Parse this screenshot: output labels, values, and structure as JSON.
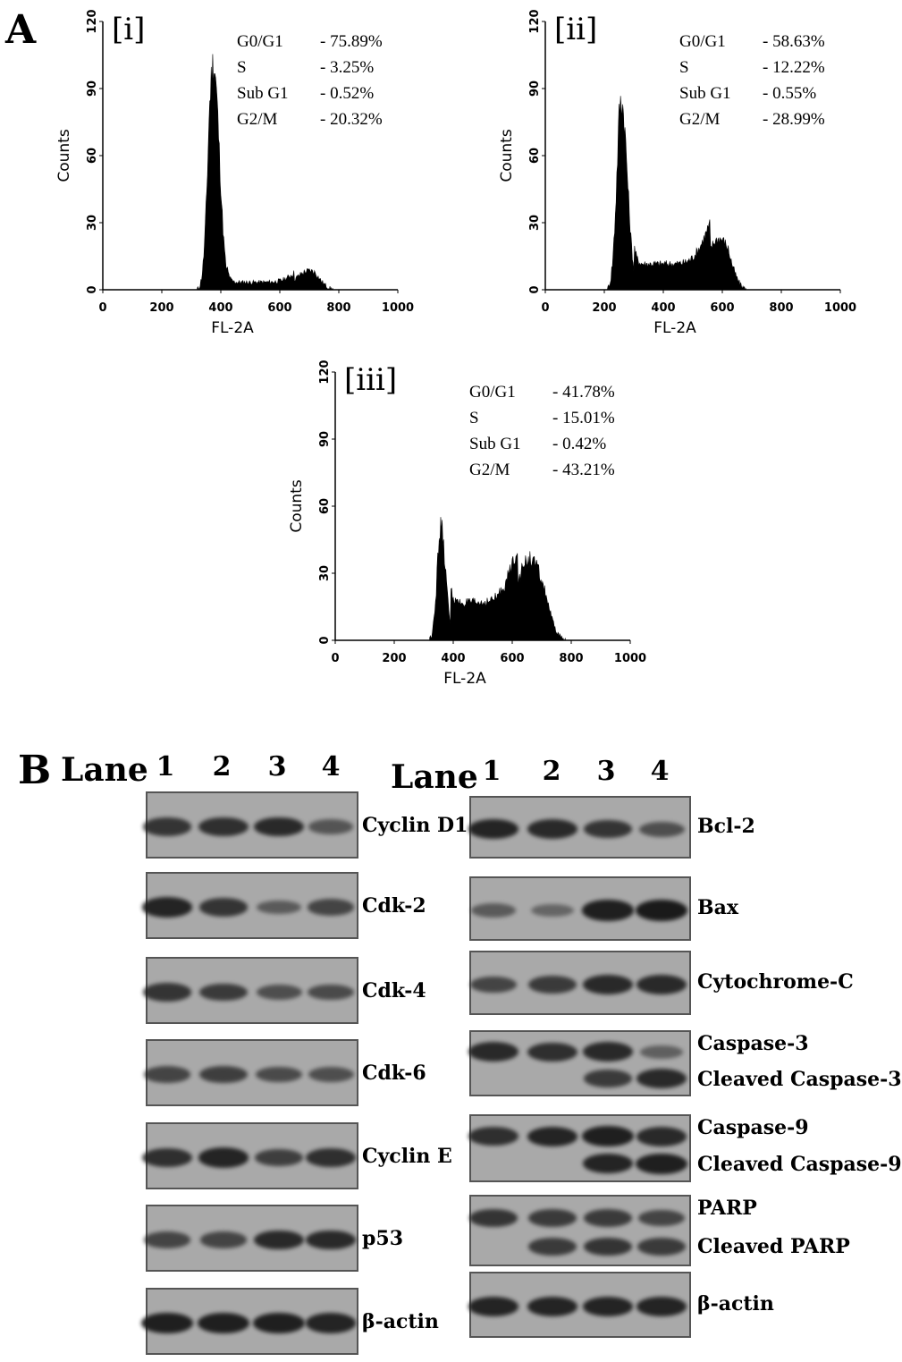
{
  "panel_a_label": "A",
  "panel_b_label": "B",
  "chart_data": [
    {
      "type": "area",
      "panel": "[i]",
      "xlabel": "FL-2A",
      "ylabel": "Counts",
      "xlim": [
        0,
        1000
      ],
      "ylim": [
        0,
        120
      ],
      "xticks": [
        "0",
        "200",
        "400",
        "600",
        "800",
        "1000"
      ],
      "yticks": [
        "0",
        "30",
        "60",
        "90",
        "120"
      ],
      "stats": [
        {
          "phase": "G0/G1",
          "value": "- 75.89%"
        },
        {
          "phase": "S",
          "value": "- 3.25%"
        },
        {
          "phase": "Sub G1",
          "value": "- 0.52%"
        },
        {
          "phase": "G2/M",
          "value": "- 20.32%"
        }
      ],
      "peaks": [
        {
          "center": 375,
          "height": 98,
          "width": 20
        },
        {
          "center": 700,
          "height": 8,
          "width": 45
        }
      ],
      "plateau": {
        "from": 420,
        "to": 650,
        "height": 3
      },
      "x_span": [
        320,
        780
      ]
    },
    {
      "type": "area",
      "panel": "[ii]",
      "xlabel": "FL-2A",
      "ylabel": "Counts",
      "xlim": [
        0,
        1000
      ],
      "ylim": [
        0,
        120
      ],
      "xticks": [
        "0",
        "200",
        "400",
        "600",
        "800",
        "1000"
      ],
      "yticks": [
        "0",
        "30",
        "60",
        "90",
        "120"
      ],
      "stats": [
        {
          "phase": "G0/G1",
          "value": "- 58.63%"
        },
        {
          "phase": "S",
          "value": "- 12.22%"
        },
        {
          "phase": "Sub G1",
          "value": "- 0.55%"
        },
        {
          "phase": "G2/M",
          "value": "- 28.99%"
        }
      ],
      "peaks": [
        {
          "center": 258,
          "height": 82,
          "width": 20
        },
        {
          "center": 590,
          "height": 22,
          "width": 45
        }
      ],
      "plateau": {
        "from": 300,
        "to": 560,
        "height": 11
      },
      "x_span": [
        210,
        680
      ]
    },
    {
      "type": "area",
      "panel": "[iii]",
      "xlabel": "FL-2A",
      "ylabel": "Counts",
      "xlim": [
        0,
        1000
      ],
      "ylim": [
        0,
        120
      ],
      "xticks": [
        "0",
        "200",
        "400",
        "600",
        "800",
        "1000"
      ],
      "yticks": [
        "0",
        "30",
        "60",
        "90",
        "120"
      ],
      "stats": [
        {
          "phase": "G0/G1",
          "value": "- 41.78%"
        },
        {
          "phase": "S",
          "value": "- 15.01%"
        },
        {
          "phase": "Sub G1",
          "value": "- 0.42%"
        },
        {
          "phase": "G2/M",
          "value": "- 43.21%"
        }
      ],
      "peaks": [
        {
          "center": 355,
          "height": 52,
          "width": 18
        },
        {
          "center": 660,
          "height": 35,
          "width": 50
        }
      ],
      "plateau": {
        "from": 390,
        "to": 620,
        "height": 16
      },
      "x_span": [
        320,
        780
      ]
    }
  ],
  "western_blot": {
    "lane_word": "Lane",
    "lanes": [
      "1",
      "2",
      "3",
      "4"
    ],
    "left_blots": [
      {
        "label": "Cyclin D1",
        "bands": [
          [
            0.75
          ],
          [
            0.8
          ],
          [
            0.85
          ],
          [
            0.45
          ]
        ]
      },
      {
        "label": "Cdk-2",
        "bands": [
          [
            0.9
          ],
          [
            0.75
          ],
          [
            0.4
          ],
          [
            0.6
          ]
        ]
      },
      {
        "label": "Cdk-4",
        "bands": [
          [
            0.75
          ],
          [
            0.7
          ],
          [
            0.5
          ],
          [
            0.55
          ]
        ]
      },
      {
        "label": "Cdk-6",
        "bands": [
          [
            0.6
          ],
          [
            0.65
          ],
          [
            0.55
          ],
          [
            0.5
          ]
        ]
      },
      {
        "label": "Cyclin E",
        "bands": [
          [
            0.8
          ],
          [
            0.9
          ],
          [
            0.65
          ],
          [
            0.8
          ]
        ]
      },
      {
        "label": "p53",
        "bands": [
          [
            0.6
          ],
          [
            0.6
          ],
          [
            0.85
          ],
          [
            0.85
          ]
        ]
      },
      {
        "label": "β-actin",
        "bands": [
          [
            0.95
          ],
          [
            0.95
          ],
          [
            0.95
          ],
          [
            0.9
          ]
        ]
      }
    ],
    "right_blots": [
      {
        "labels": [
          "Bcl-2"
        ],
        "bands": [
          [
            0.9
          ],
          [
            0.85
          ],
          [
            0.75
          ],
          [
            0.5
          ]
        ]
      },
      {
        "labels": [
          "Bax"
        ],
        "bands": [
          [
            0.4
          ],
          [
            0.3
          ],
          [
            0.95
          ],
          [
            1.0
          ]
        ]
      },
      {
        "labels": [
          "Cytochrome-C"
        ],
        "bands": [
          [
            0.6
          ],
          [
            0.7
          ],
          [
            0.85
          ],
          [
            0.85
          ]
        ]
      },
      {
        "labels": [
          "Caspase-3",
          "Cleaved Caspase-3"
        ],
        "bands": [
          [
            0.85,
            0
          ],
          [
            0.8,
            0
          ],
          [
            0.85,
            0.7
          ],
          [
            0.35,
            0.85
          ]
        ]
      },
      {
        "labels": [
          "Caspase-9",
          "Cleaved Caspase-9"
        ],
        "bands": [
          [
            0.8,
            0
          ],
          [
            0.9,
            0
          ],
          [
            0.95,
            0.9
          ],
          [
            0.85,
            0.95
          ]
        ]
      },
      {
        "labels": [
          "PARP",
          "Cleaved PARP"
        ],
        "bands": [
          [
            0.75,
            0
          ],
          [
            0.7,
            0.7
          ],
          [
            0.7,
            0.75
          ],
          [
            0.6,
            0.7
          ]
        ]
      },
      {
        "labels": [
          "β-actin"
        ],
        "bands": [
          [
            0.9
          ],
          [
            0.9
          ],
          [
            0.9
          ],
          [
            0.9
          ]
        ]
      }
    ]
  }
}
